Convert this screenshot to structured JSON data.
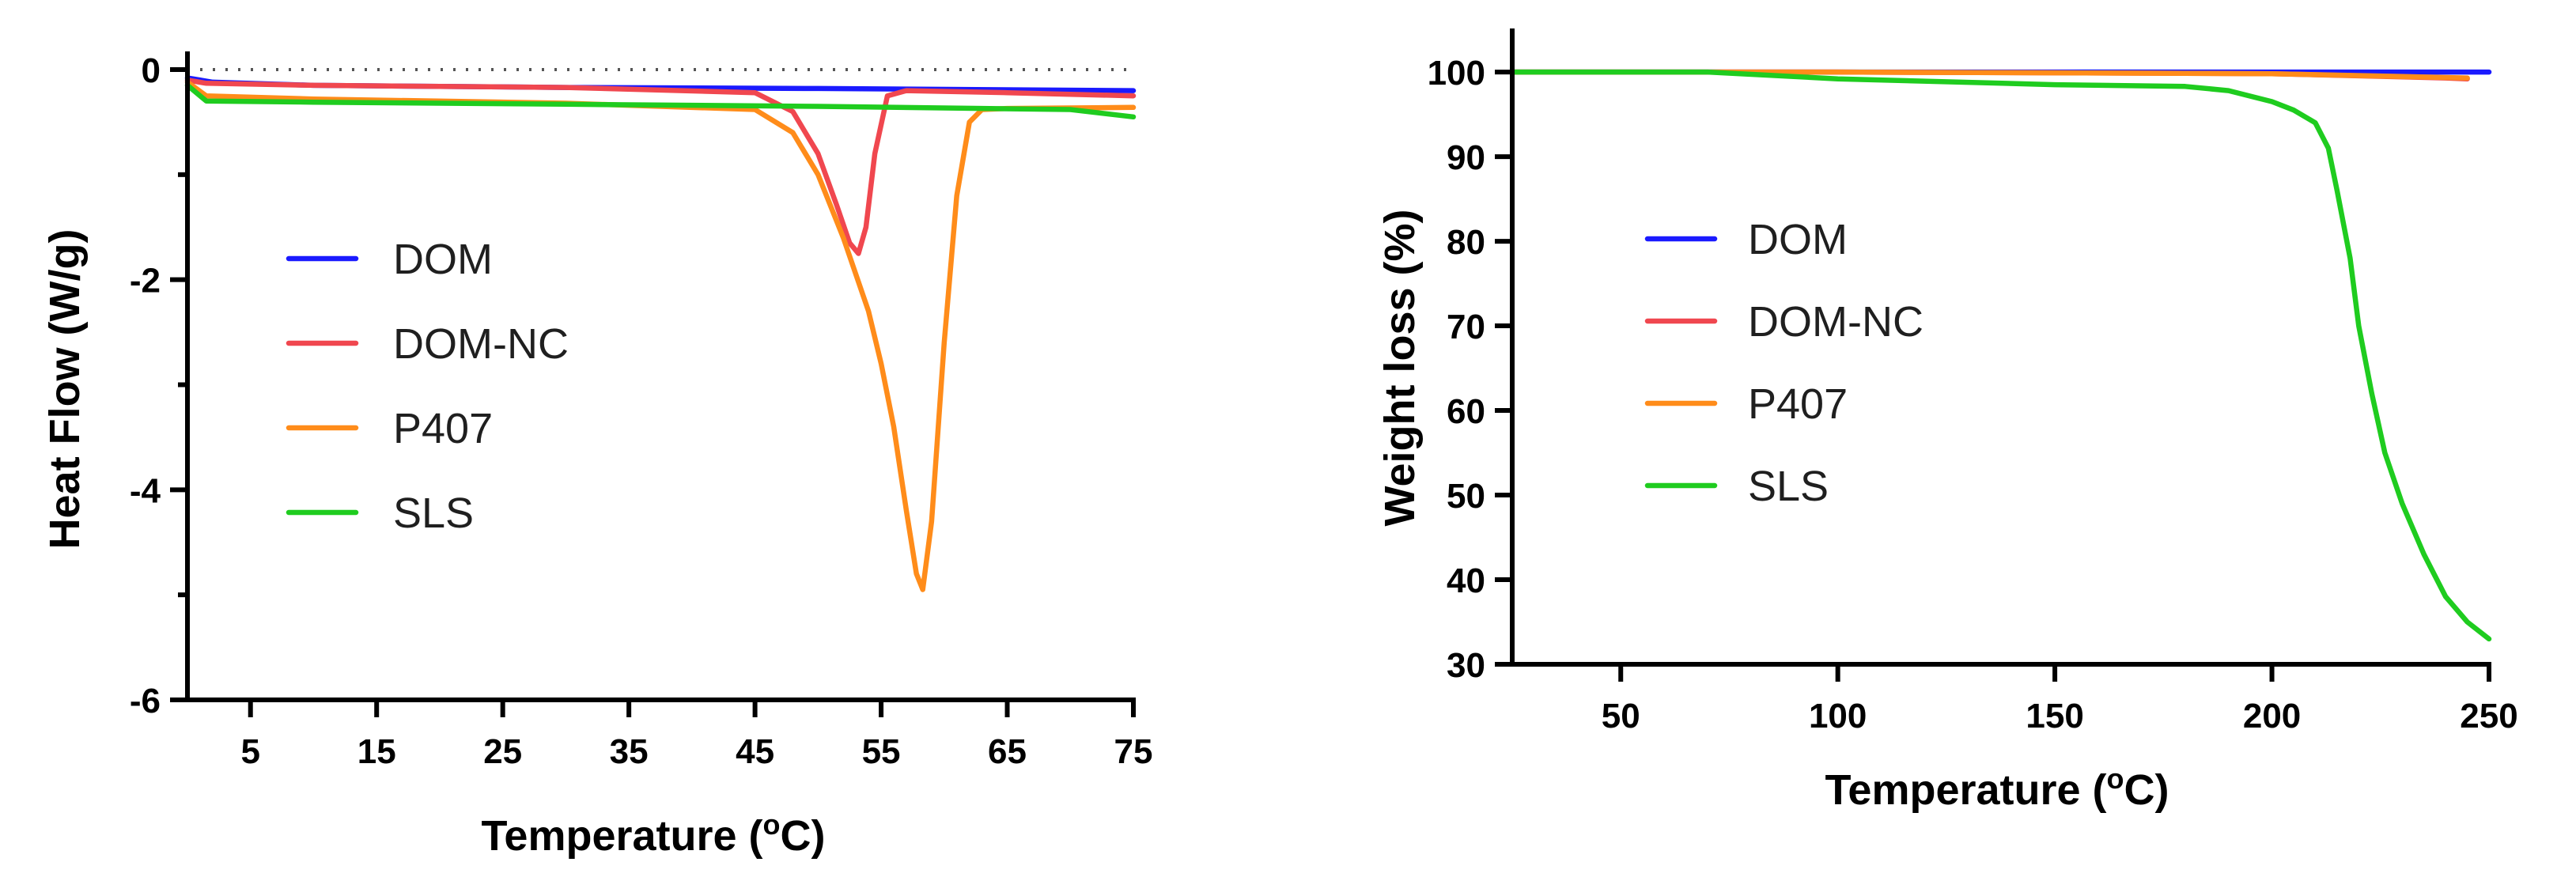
{
  "chart_data": [
    {
      "type": "line",
      "title": "",
      "xlabel": "Temperature (oC)",
      "ylabel": "Heat Flow (W/g)",
      "xlim": [
        0,
        75
      ],
      "ylim": [
        -6,
        0
      ],
      "xticks": [
        5,
        15,
        25,
        35,
        45,
        55,
        65,
        75
      ],
      "yticks": [
        0,
        -2,
        -4,
        -6
      ],
      "reference_line": 0,
      "legend_position": "center-left",
      "series": [
        {
          "name": "DOM",
          "color": "#1a1aff",
          "x": [
            0,
            2,
            10,
            30,
            50,
            75
          ],
          "y": [
            -0.08,
            -0.12,
            -0.15,
            -0.17,
            -0.18,
            -0.2
          ]
        },
        {
          "name": "DOM-NC",
          "color": "#f0474f",
          "x": [
            0,
            1.5,
            10,
            30,
            45,
            48,
            50,
            51.5,
            52.5,
            53.2,
            53.8,
            54.5,
            55.5,
            57,
            65,
            75
          ],
          "y": [
            -0.1,
            -0.13,
            -0.15,
            -0.17,
            -0.22,
            -0.4,
            -0.8,
            -1.3,
            -1.65,
            -1.75,
            -1.5,
            -0.8,
            -0.25,
            -0.2,
            -0.22,
            -0.25
          ]
        },
        {
          "name": "P407",
          "color": "#ff8c1a",
          "x": [
            0,
            1.5,
            10,
            30,
            45,
            48,
            50,
            52,
            54,
            55,
            56,
            57,
            57.8,
            58.3,
            59,
            60,
            61,
            62,
            63,
            65,
            75
          ],
          "y": [
            -0.12,
            -0.25,
            -0.28,
            -0.32,
            -0.38,
            -0.6,
            -1.0,
            -1.6,
            -2.3,
            -2.8,
            -3.4,
            -4.2,
            -4.8,
            -4.95,
            -4.3,
            -2.6,
            -1.2,
            -0.5,
            -0.38,
            -0.37,
            -0.36
          ]
        },
        {
          "name": "SLS",
          "color": "#1fcc1f",
          "x": [
            0,
            1.5,
            10,
            30,
            50,
            70,
            75
          ],
          "y": [
            -0.15,
            -0.3,
            -0.31,
            -0.33,
            -0.35,
            -0.38,
            -0.45
          ]
        }
      ]
    },
    {
      "type": "line",
      "title": "",
      "xlabel": "Temperature (oC)",
      "ylabel": "Weight loss (%)",
      "xlim": [
        25,
        250
      ],
      "ylim": [
        30,
        103
      ],
      "xticks": [
        50,
        100,
        150,
        200,
        250
      ],
      "yticks": [
        100,
        90,
        80,
        70,
        60,
        50,
        40,
        30
      ],
      "legend_position": "center-left",
      "series": [
        {
          "name": "DOM",
          "color": "#1a1aff",
          "x": [
            25,
            100,
            200,
            250
          ],
          "y": [
            100,
            100,
            100,
            100
          ]
        },
        {
          "name": "DOM-NC",
          "color": "#f0474f",
          "x": [
            25,
            100,
            200,
            240,
            245
          ],
          "y": [
            100,
            100,
            99.8,
            99.3,
            99.2
          ]
        },
        {
          "name": "P407",
          "color": "#ff8c1a",
          "x": [
            25,
            100,
            200,
            245
          ],
          "y": [
            100,
            100,
            99.8,
            99.3
          ]
        },
        {
          "name": "SLS",
          "color": "#1fcc1f",
          "x": [
            25,
            70,
            100,
            150,
            180,
            190,
            200,
            205,
            210,
            213,
            215,
            218,
            220,
            223,
            226,
            230,
            235,
            240,
            245,
            250
          ],
          "y": [
            100,
            100,
            99.2,
            98.5,
            98.3,
            97.8,
            96.5,
            95.5,
            94,
            91,
            86,
            78,
            70,
            62,
            55,
            49,
            43,
            38,
            35,
            33
          ]
        }
      ]
    }
  ]
}
